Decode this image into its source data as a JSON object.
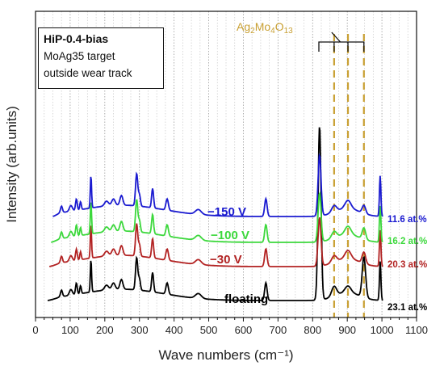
{
  "chart_data": {
    "type": "line",
    "xlabel": "Wave numbers (cm⁻¹)",
    "ylabel": "Intensity (arb.units)",
    "xlim": [
      0,
      1100
    ],
    "x_ticks": [
      "0",
      "100",
      "200",
      "300",
      "400",
      "500",
      "600",
      "700",
      "800",
      "900",
      "1000",
      "1100"
    ],
    "legend_lines": [
      "HiP-0.4-bias",
      "MoAg35 target",
      "outside wear track"
    ],
    "reference": {
      "label": "Ag",
      "sub1": "2",
      "mid": "Mo",
      "sub2": "4",
      "end": "O",
      "sub3": "13",
      "positions": [
        862,
        902,
        948
      ],
      "color": "#c9a033"
    },
    "series": [
      {
        "name": "floating",
        "at_label": "23.1 at.%",
        "color": "#000000"
      },
      {
        "name": "−30 V",
        "at_label": "20.3 at.%",
        "color": "#b22222"
      },
      {
        "name": "−100 V",
        "at_label": "16.2 at.%",
        "color": "#3cd83c"
      },
      {
        "name": "−150 V",
        "at_label": "11.6 at.%",
        "color": "#1a1ad0"
      }
    ],
    "peaks_cm1": [
      75,
      102,
      118,
      130,
      160,
      205,
      248,
      292,
      338,
      380,
      470,
      665,
      820,
      862,
      902,
      948,
      995
    ],
    "grid": "vertical dotted"
  }
}
